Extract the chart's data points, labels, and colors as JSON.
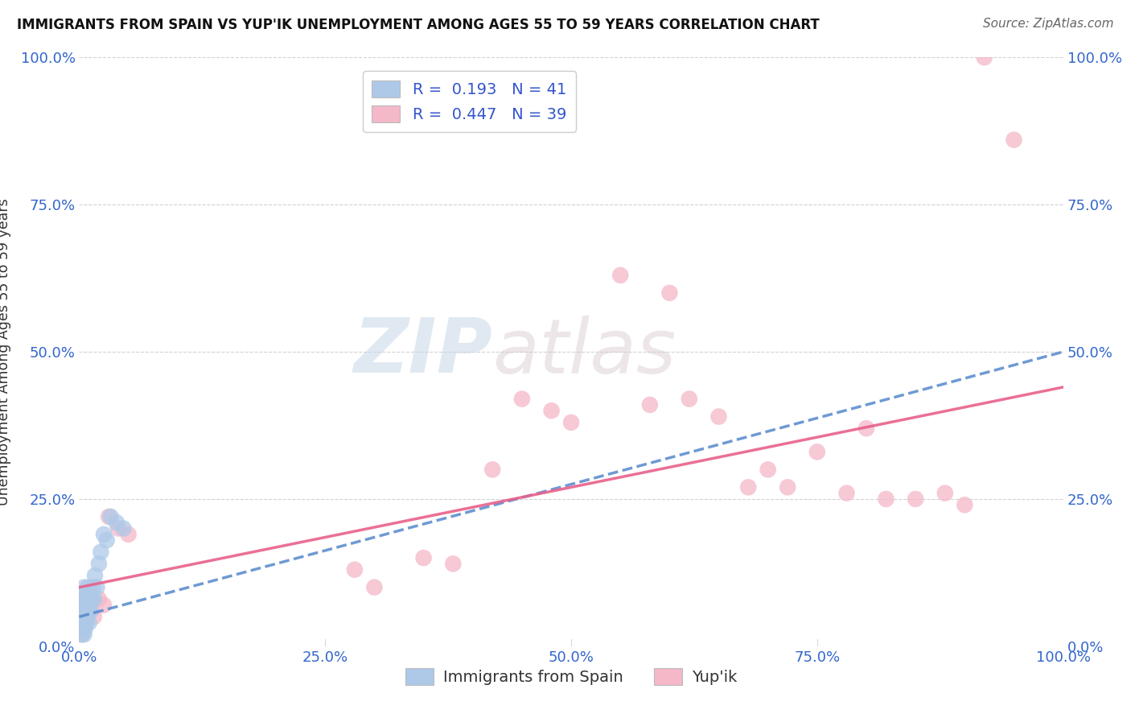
{
  "title": "IMMIGRANTS FROM SPAIN VS YUP'IK UNEMPLOYMENT AMONG AGES 55 TO 59 YEARS CORRELATION CHART",
  "source": "Source: ZipAtlas.com",
  "ylabel": "Unemployment Among Ages 55 to 59 years",
  "xlim": [
    0,
    1.0
  ],
  "ylim": [
    0,
    1.0
  ],
  "xtick_labels": [
    "0.0%",
    "25.0%",
    "50.0%",
    "75.0%",
    "100.0%"
  ],
  "xtick_vals": [
    0,
    0.25,
    0.5,
    0.75,
    1.0
  ],
  "ytick_labels": [
    "0.0%",
    "25.0%",
    "50.0%",
    "75.0%",
    "100.0%"
  ],
  "ytick_vals": [
    0,
    0.25,
    0.5,
    0.75,
    1.0
  ],
  "legend_R1": "0.193",
  "legend_N1": "41",
  "legend_R2": "0.447",
  "legend_N2": "39",
  "legend_label1": "Immigrants from Spain",
  "legend_label2": "Yup'ik",
  "color_blue": "#aec9e8",
  "color_pink": "#f4b8c8",
  "color_blue_line": "#5588cc",
  "color_pink_line": "#e8608a",
  "watermark_zip": "ZIP",
  "watermark_atlas": "atlas",
  "scatter_blue_x": [
    0.002,
    0.002,
    0.003,
    0.003,
    0.003,
    0.003,
    0.004,
    0.004,
    0.004,
    0.004,
    0.005,
    0.005,
    0.005,
    0.005,
    0.005,
    0.006,
    0.006,
    0.006,
    0.007,
    0.007,
    0.007,
    0.008,
    0.008,
    0.009,
    0.009,
    0.01,
    0.01,
    0.011,
    0.012,
    0.013,
    0.014,
    0.015,
    0.016,
    0.018,
    0.02,
    0.022,
    0.025,
    0.028,
    0.032,
    0.038,
    0.045
  ],
  "scatter_blue_y": [
    0.03,
    0.05,
    0.02,
    0.04,
    0.06,
    0.08,
    0.03,
    0.05,
    0.07,
    0.09,
    0.02,
    0.04,
    0.06,
    0.08,
    0.1,
    0.03,
    0.05,
    0.07,
    0.04,
    0.06,
    0.09,
    0.05,
    0.08,
    0.06,
    0.1,
    0.04,
    0.07,
    0.09,
    0.06,
    0.08,
    0.1,
    0.08,
    0.12,
    0.1,
    0.14,
    0.16,
    0.19,
    0.18,
    0.22,
    0.21,
    0.2
  ],
  "scatter_pink_x": [
    0.002,
    0.004,
    0.005,
    0.006,
    0.007,
    0.008,
    0.01,
    0.012,
    0.015,
    0.02,
    0.025,
    0.03,
    0.04,
    0.05,
    0.28,
    0.3,
    0.35,
    0.38,
    0.42,
    0.45,
    0.48,
    0.5,
    0.55,
    0.58,
    0.6,
    0.62,
    0.65,
    0.68,
    0.7,
    0.72,
    0.75,
    0.78,
    0.8,
    0.82,
    0.85,
    0.88,
    0.9,
    0.92,
    0.95
  ],
  "scatter_pink_y": [
    0.02,
    0.03,
    0.04,
    0.06,
    0.05,
    0.07,
    0.06,
    0.08,
    0.05,
    0.08,
    0.07,
    0.22,
    0.2,
    0.19,
    0.13,
    0.1,
    0.15,
    0.14,
    0.3,
    0.42,
    0.4,
    0.38,
    0.63,
    0.41,
    0.6,
    0.42,
    0.39,
    0.27,
    0.3,
    0.27,
    0.33,
    0.26,
    0.37,
    0.25,
    0.25,
    0.26,
    0.24,
    1.0,
    0.86
  ],
  "blue_line_x0": 0.0,
  "blue_line_y0": 0.05,
  "blue_line_x1": 1.0,
  "blue_line_y1": 0.5,
  "pink_line_x0": 0.0,
  "pink_line_y0": 0.1,
  "pink_line_x1": 1.0,
  "pink_line_y1": 0.44
}
